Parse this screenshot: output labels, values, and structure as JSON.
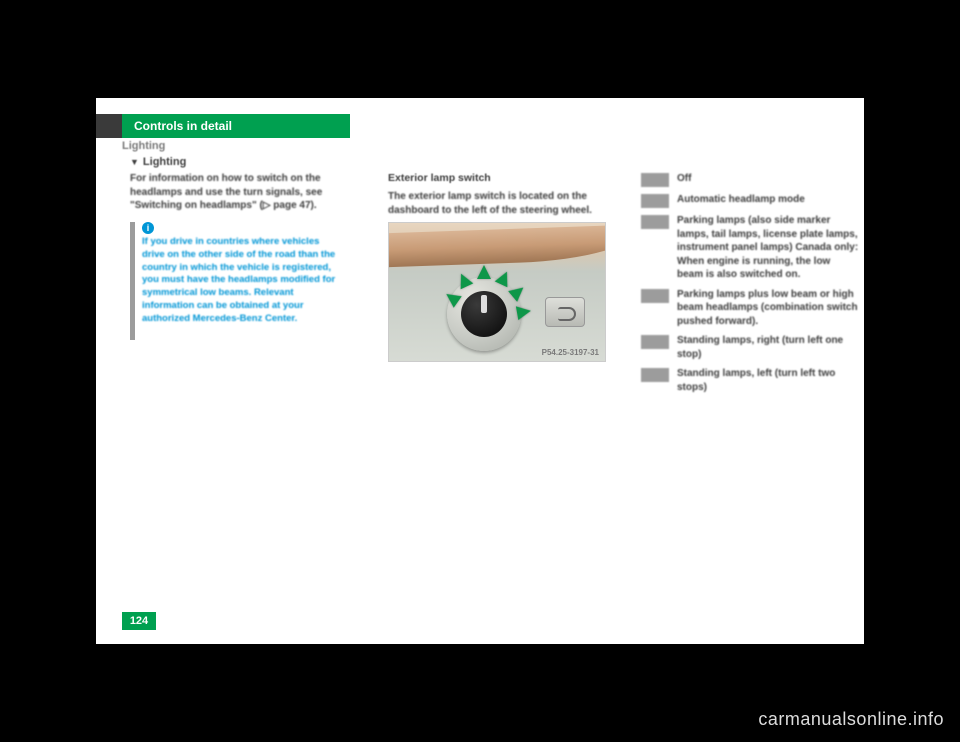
{
  "header": {
    "title": "Controls in detail"
  },
  "subhead": "Lighting",
  "subsection": "Lighting",
  "intro": "For information on how to switch on the headlamps and use the turn signals, see \"Switching on headlamps\" (▷ page 47).",
  "note": {
    "icon": "i",
    "text": "If you drive in countries where vehicles drive on the other side of the road than the country in which the vehicle is registered, you must have the headlamps modified for symmetrical low beams. Relevant information can be obtained at your authorized Mercedes-Benz Center."
  },
  "col2": {
    "head": "Exterior lamp switch",
    "text": "The exterior lamp switch is located on the dashboard to the left of the steering wheel.",
    "photo_label": "P54.25-3197-31"
  },
  "legend": [
    {
      "text": "Off"
    },
    {
      "text": "Automatic headlamp mode"
    },
    {
      "text": "Parking lamps (also side marker lamps, tail lamps, license plate lamps, instrument panel lamps) Canada only: When engine is running, the low beam is also switched on."
    },
    {
      "text": "Parking lamps plus low beam or high beam headlamps (combination switch pushed forward)."
    },
    {
      "text": "Standing lamps, right (turn left one stop)"
    },
    {
      "text": "Standing lamps, left (turn left two stops)"
    }
  ],
  "page_number": "124",
  "watermark": "carmanualsonline.info"
}
